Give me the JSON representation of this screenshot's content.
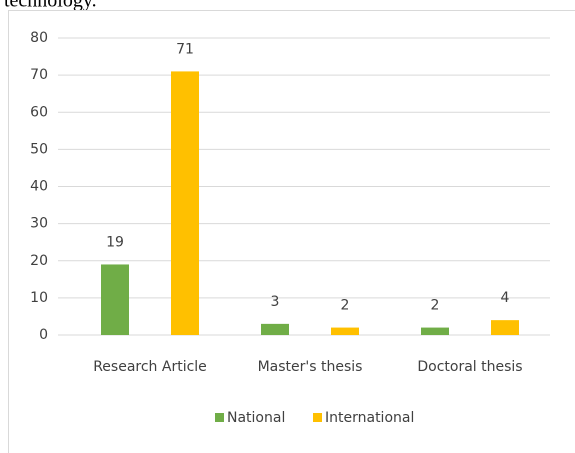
{
  "text_above": "technology.",
  "chart_data": {
    "type": "bar",
    "categories": [
      "Research Article",
      "Master's thesis",
      "Doctoral thesis"
    ],
    "series": [
      {
        "name": "National",
        "color": "#70ad47",
        "values": [
          19,
          3,
          2
        ]
      },
      {
        "name": "International",
        "color": "#ffc000",
        "values": [
          71,
          2,
          4
        ]
      }
    ],
    "ylim": [
      0,
      80
    ],
    "yticks": [
      0,
      10,
      20,
      30,
      40,
      50,
      60,
      70,
      80
    ],
    "grid": true,
    "legend": "bottom"
  }
}
